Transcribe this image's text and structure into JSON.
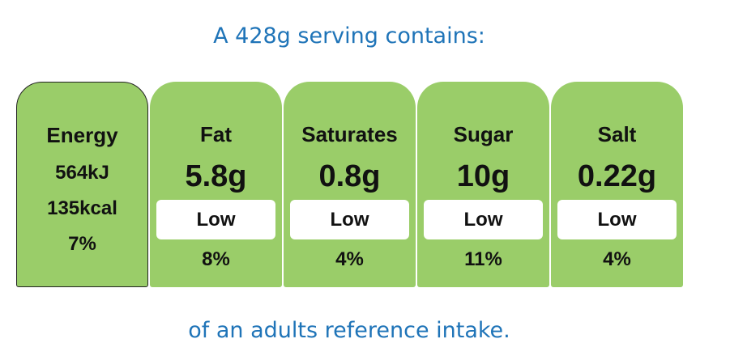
{
  "header": {
    "title": "A 428g serving contains:"
  },
  "energy": {
    "label": "Energy",
    "kj": "564kJ",
    "kcal": "135kcal",
    "percent": "7%"
  },
  "nutrients": [
    {
      "label": "Fat",
      "amount": "5.8g",
      "level": "Low",
      "percent": "8%"
    },
    {
      "label": "Saturates",
      "amount": "0.8g",
      "level": "Low",
      "percent": "4%"
    },
    {
      "label": "Sugar",
      "amount": "10g",
      "level": "Low",
      "percent": "11%"
    },
    {
      "label": "Salt",
      "amount": "0.22g",
      "level": "Low",
      "percent": "4%"
    }
  ],
  "footer": {
    "text": "of an adults reference intake."
  }
}
